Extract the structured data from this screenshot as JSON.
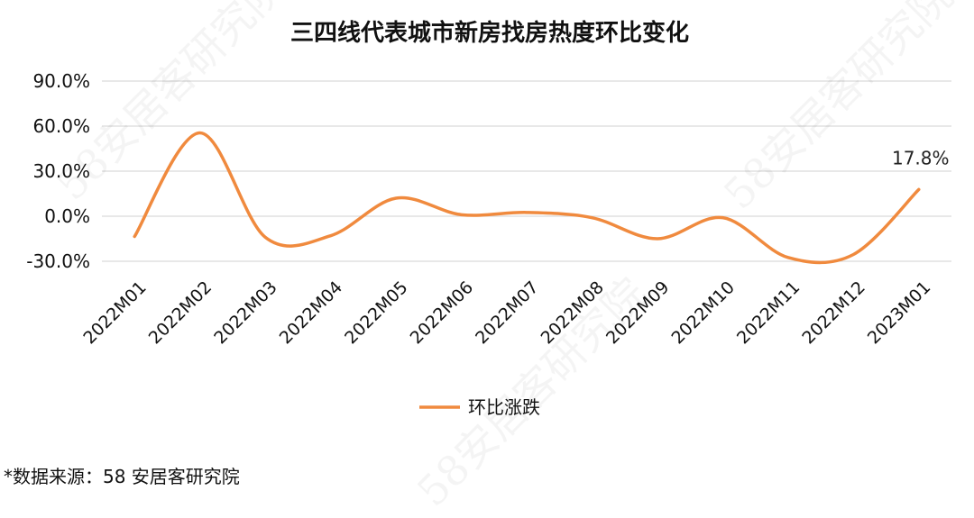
{
  "chart_data": {
    "type": "line",
    "title": "三四线代表城市新房找房热度环比变化",
    "categories": [
      "2022M01",
      "2022M02",
      "2022M03",
      "2022M04",
      "2022M05",
      "2022M06",
      "2022M07",
      "2022M08",
      "2022M09",
      "2022M10",
      "2022M11",
      "2022M12",
      "2023M01"
    ],
    "series": [
      {
        "name": "环比涨跌",
        "values": [
          -13.5,
          55.5,
          -14.0,
          -13.0,
          12.0,
          1.0,
          2.5,
          -1.0,
          -15.0,
          -1.0,
          -27.5,
          -25.5,
          17.8
        ],
        "color": "#F08A3E"
      }
    ],
    "yticks": [
      "90.0%",
      "60.0%",
      "30.0%",
      "0.0%",
      "-30.0%"
    ],
    "ylim": [
      -30,
      90
    ],
    "grid": true,
    "legend": "bottom",
    "annotation": {
      "category": "2023M01",
      "text": "17.8%"
    }
  },
  "source_note": "*数据来源：58 安居客研究院",
  "watermark_text": "58安居客研究院"
}
